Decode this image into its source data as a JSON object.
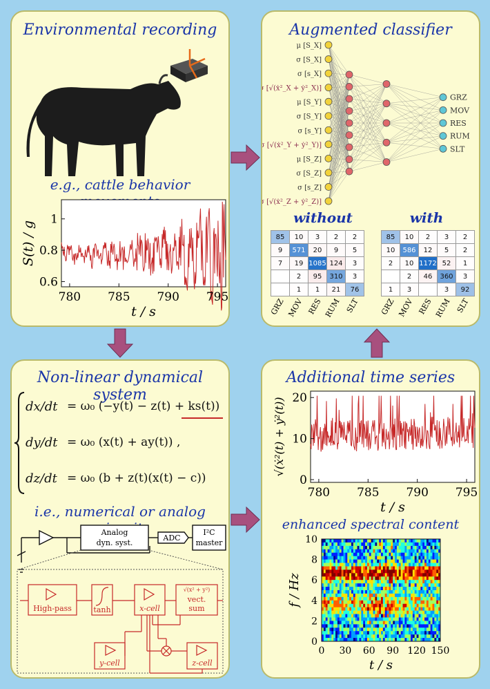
{
  "panels": {
    "recording": {
      "title": "Environmental recording",
      "subtitle": "e.g., cattle behavior movements",
      "plot": {
        "ylabel": "S(t) / g",
        "xlabel": "t / s",
        "yticks": [
          "1",
          "0.8",
          "0.6"
        ],
        "xticks": [
          "780",
          "785",
          "790",
          "795"
        ]
      }
    },
    "classifier": {
      "title": "Augmented classifier",
      "inputs": [
        "μ [S_X]",
        "σ [S_X]",
        "σ [s_X]",
        "σ [√(ẋ²_X + ẏ²_X)]",
        "μ [S_Y]",
        "σ [S_Y]",
        "σ [s_Y]",
        "σ [√(ẋ²_Y + ẏ²_Y)]",
        "μ [S_Z]",
        "σ [S_Z]",
        "σ [s_Z]",
        "σ [√(ẋ²_Z + ẏ²_Z)]"
      ],
      "outputs": [
        "GRZ",
        "MOV",
        "RES",
        "RUM",
        "SLT"
      ],
      "without_label": "without",
      "with_label": "with",
      "classes": [
        "GRZ",
        "MOV",
        "RES",
        "RUM",
        "SLT"
      ],
      "cm_without": [
        [
          "85",
          "10",
          "3",
          "2",
          "2"
        ],
        [
          "9",
          "571",
          "20",
          "9",
          "5"
        ],
        [
          "7",
          "19",
          "1085",
          "124",
          "3"
        ],
        [
          "",
          "2",
          "95",
          "310",
          "3"
        ],
        [
          "",
          "1",
          "1",
          "21",
          "76"
        ]
      ],
      "cm_with": [
        [
          "85",
          "10",
          "2",
          "3",
          "2"
        ],
        [
          "10",
          "586",
          "12",
          "5",
          "2"
        ],
        [
          "2",
          "10",
          "1172",
          "52",
          "1"
        ],
        [
          "",
          "2",
          "46",
          "360",
          "3"
        ],
        [
          "1",
          "3",
          "",
          "3",
          "92"
        ]
      ]
    },
    "dynamical": {
      "title": "Non-linear dynamical system",
      "eq1_lhs": "dx/dt",
      "eq1_rhs": "= ω₀ (−y(t) − z(t) + ks(t))",
      "eq2_lhs": "dy/dt",
      "eq2_rhs": "= ω₀ (x(t) + ay(t)) ,",
      "eq3_lhs": "dz/dt",
      "eq3_rhs": "= ω₀ (b + z(t)(x(t) − c))",
      "circuit_title": "i.e., numerical or analog circuit",
      "circuit": {
        "analog": "Analog",
        "dyn": "dyn. syst.",
        "adc": "ADC",
        "i2c": "I²C",
        "master": "master",
        "highpass": "High-pass",
        "tanh": "tanh",
        "xcell": "x-cell",
        "ycell": "y-cell",
        "zcell": "z-cell",
        "vect": "vect.",
        "sum": "sum",
        "sqrt": "√(x² + y²)"
      }
    },
    "additional": {
      "title": "Additional time series",
      "plot1": {
        "ylabel": "√(ẋ²(t) + ẏ²(t))",
        "xlabel": "t / s",
        "yticks": [
          "20",
          "10",
          "0"
        ],
        "xticks": [
          "780",
          "785",
          "790",
          "795"
        ]
      },
      "spectral_title": "enhanced spectral content",
      "plot2": {
        "ylabel": "f / Hz",
        "xlabel": "t / s",
        "yticks": [
          "10",
          "8",
          "6",
          "4",
          "2",
          "0"
        ],
        "xticks": [
          "0",
          "30",
          "60",
          "90",
          "120",
          "150"
        ]
      }
    }
  },
  "colors": {
    "background": "#9fd2ee",
    "panel": "#fcfbd2",
    "title": "#1a35a8",
    "signal": "#c62828",
    "arrow": "#a8507e"
  }
}
